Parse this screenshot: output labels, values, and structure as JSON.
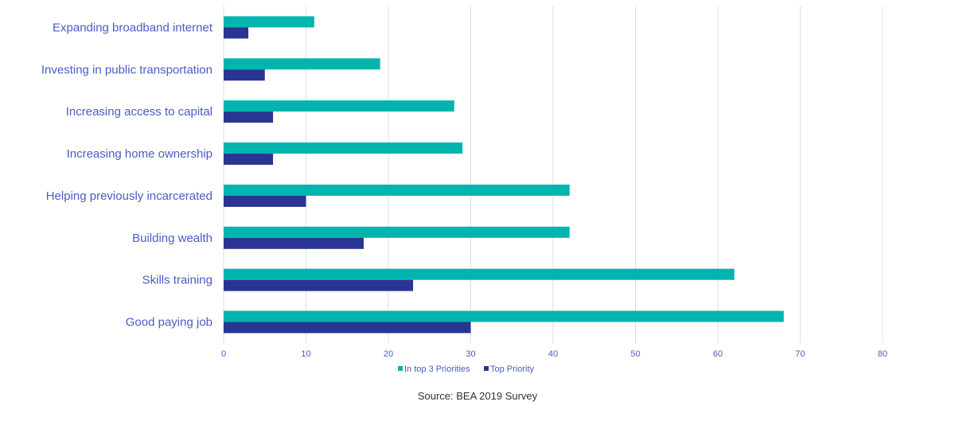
{
  "chart_data": {
    "type": "bar",
    "orientation": "horizontal",
    "categories": [
      "Expanding broadband internet",
      "Investing in public transportation",
      "Increasing access to capital",
      "Increasing home ownership",
      "Helping previously incarcerated",
      "Building wealth",
      "Skills training",
      "Good paying job"
    ],
    "series": [
      {
        "name": "In top 3 Priorities",
        "color": "#00b5ad",
        "values": [
          11,
          19,
          28,
          29,
          42,
          42,
          62,
          68
        ]
      },
      {
        "name": "Top Priority",
        "color": "#283593",
        "values": [
          3,
          5,
          6,
          6,
          10,
          17,
          23,
          30
        ]
      }
    ],
    "xlim": [
      0,
      80
    ],
    "xticks": [
      "0",
      "10",
      "20",
      "30",
      "40",
      "50",
      "60",
      "70",
      "80"
    ],
    "grid": true,
    "legend_position": "bottom",
    "source": "Source: BEA 2019 Survey"
  }
}
